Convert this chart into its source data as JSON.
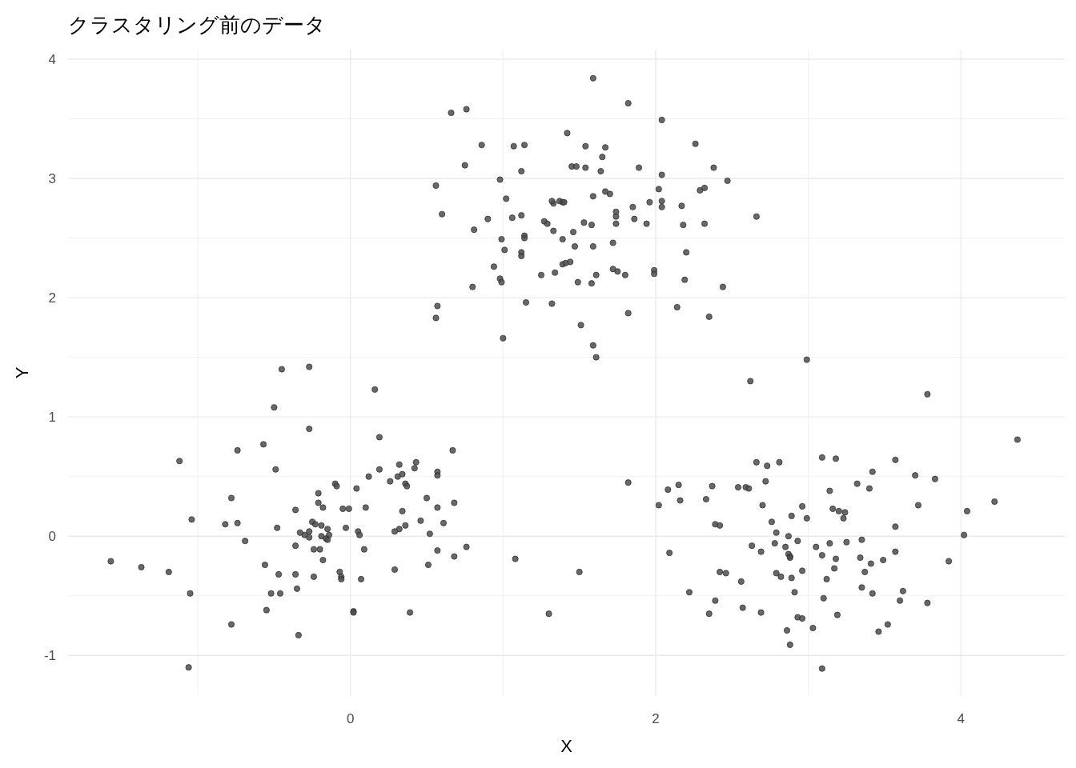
{
  "chart_data": {
    "type": "scatter",
    "title": "クラスタリング前のデータ",
    "xlabel": "X",
    "ylabel": "Y",
    "xlim": [
      -1.85,
      4.68
    ],
    "ylim": [
      -1.34,
      4.08
    ],
    "xticks": [
      {
        "value": -1,
        "label": null
      },
      0,
      {
        "value": 1,
        "label": null
      },
      2,
      {
        "value": 3,
        "label": null
      },
      4
    ],
    "yticks": [
      -1,
      {
        "value": -0.5,
        "label": null
      },
      0,
      {
        "value": 0.5,
        "label": null
      },
      1,
      {
        "value": 1.5,
        "label": null
      },
      2,
      {
        "value": 2.5,
        "label": null
      },
      3,
      {
        "value": 3.5,
        "label": null
      },
      4
    ],
    "grid": true,
    "marker": "circle",
    "series": [
      {
        "color": "#4d4d4d",
        "x": [
          1.59,
          1.82,
          0.76,
          0.66,
          2.04,
          1.42,
          2.26,
          0.86,
          1.07,
          1.14,
          1.54,
          1.67,
          1.65,
          1.45,
          1.48,
          1.54,
          0.75,
          1.89,
          2.38,
          1.64,
          1.12,
          2.04,
          0.98,
          2.47,
          0.56,
          2.32,
          2.29,
          2.02,
          1.67,
          1.7,
          1.59,
          1.02,
          1.37,
          1.39,
          1.33,
          1.32,
          1.4,
          1.96,
          2.04,
          2.17,
          1.85,
          2.04,
          1.74,
          0.6,
          1.12,
          1.74,
          1.06,
          0.9,
          2.66,
          1.86,
          1.27,
          1.29,
          1.53,
          1.58,
          1.74,
          1.94,
          2.18,
          2.32,
          0.81,
          1.33,
          1.46,
          1.14,
          1.14,
          0.99,
          1.39,
          1.72,
          1.47,
          1.59,
          1.01,
          2.2,
          1.12,
          1.12,
          1.39,
          1.41,
          1.44,
          0.94,
          1.72,
          1.75,
          1.99,
          1.99,
          1.34,
          1.25,
          1.8,
          1.61,
          0.98,
          0.99,
          2.19,
          1.49,
          1.58,
          0.8,
          2.44,
          1.15,
          1.32,
          0.57,
          2.14,
          1.82,
          2.35,
          0.56,
          1.51,
          1.0,
          1.59,
          1.61,
          2.99,
          2.62,
          3.78,
          4.37,
          1.82,
          3.09,
          3.18,
          2.66,
          2.81,
          2.73,
          3.57,
          3.42,
          3.7,
          3.83,
          2.72,
          3.32,
          3.4,
          2.37,
          2.15,
          2.08,
          2.54,
          2.59,
          2.61,
          3.14,
          2.16,
          2.33,
          4.22,
          2.02,
          2.7,
          2.96,
          3.72,
          3.16,
          3.2,
          3.24,
          4.04,
          2.89,
          2.99,
          3.23,
          2.76,
          2.39,
          2.42,
          3.57,
          2.79,
          2.87,
          4.02,
          3.35,
          2.93,
          2.78,
          3.14,
          3.25,
          2.63,
          2.85,
          3.05,
          2.09,
          2.69,
          3.57,
          2.87,
          2.88,
          3.09,
          3.18,
          3.34,
          3.49,
          3.92,
          2.88,
          3.41,
          3.17,
          2.96,
          2.42,
          2.46,
          2.79,
          3.37,
          2.82,
          2.89,
          2.56,
          3.12,
          3.35,
          2.91,
          3.62,
          2.22,
          3.42,
          3.1,
          2.39,
          3.6,
          3.78,
          2.57,
          2.69,
          2.35,
          3.19,
          2.93,
          2.96,
          3.52,
          3.03,
          2.86,
          3.46,
          2.88,
          3.09,
          1.5,
          1.3,
          1.08,
          -0.45,
          -0.27,
          0.16,
          -0.5,
          -0.27,
          0.19,
          -0.57,
          -0.74,
          0.67,
          -1.12,
          -0.49,
          0.19,
          0.43,
          0.32,
          0.42,
          0.57,
          0.57,
          0.12,
          0.26,
          0.31,
          0.34,
          0.36,
          0.37,
          -0.1,
          -0.09,
          0.04,
          -0.21,
          0.5,
          -0.78,
          -0.21,
          0.68,
          -0.18,
          0.1,
          0.57,
          -0.05,
          -0.01,
          -0.36,
          0.34,
          -1.04,
          0.61,
          -0.25,
          -0.82,
          -0.74,
          -0.23,
          0.46,
          0.36,
          0.32,
          -0.03,
          -0.19,
          -0.48,
          -0.15,
          -0.33,
          -0.3,
          -0.27,
          0.05,
          0.29,
          0.52,
          -0.14,
          0.06,
          -0.19,
          -0.27,
          -0.16,
          -0.15,
          -0.69,
          -0.36,
          -0.24,
          -0.2,
          0.09,
          0.57,
          0.76,
          0.68,
          -0.18,
          -1.57,
          0.51,
          -0.56,
          -1.37,
          0.29,
          -1.19,
          -0.07,
          -0.47,
          -0.36,
          -0.06,
          -0.24,
          -0.06,
          0.07,
          -0.35,
          -1.05,
          -0.52,
          -0.46,
          -0.55,
          0.02,
          0.02,
          0.39,
          -0.78,
          -0.34,
          -1.06
        ],
        "values": [
          3.84,
          3.63,
          3.58,
          3.55,
          3.49,
          3.38,
          3.29,
          3.28,
          3.27,
          3.28,
          3.27,
          3.26,
          3.18,
          3.1,
          3.1,
          3.09,
          3.11,
          3.09,
          3.09,
          3.06,
          3.06,
          3.03,
          2.99,
          2.98,
          2.94,
          2.92,
          2.9,
          2.91,
          2.89,
          2.87,
          2.85,
          2.83,
          2.81,
          2.8,
          2.79,
          2.81,
          2.8,
          2.8,
          2.81,
          2.77,
          2.76,
          2.76,
          2.72,
          2.7,
          2.69,
          2.68,
          2.67,
          2.66,
          2.68,
          2.66,
          2.64,
          2.62,
          2.63,
          2.61,
          2.62,
          2.62,
          2.61,
          2.62,
          2.57,
          2.56,
          2.55,
          2.52,
          2.5,
          2.49,
          2.49,
          2.46,
          2.43,
          2.43,
          2.4,
          2.38,
          2.38,
          2.35,
          2.28,
          2.29,
          2.3,
          2.26,
          2.24,
          2.22,
          2.23,
          2.2,
          2.21,
          2.19,
          2.19,
          2.19,
          2.16,
          2.13,
          2.15,
          2.13,
          2.12,
          2.09,
          2.09,
          1.96,
          1.95,
          1.93,
          1.92,
          1.87,
          1.84,
          1.83,
          1.77,
          1.66,
          1.6,
          1.5,
          1.48,
          1.3,
          1.19,
          0.81,
          0.45,
          0.66,
          0.65,
          0.62,
          0.62,
          0.59,
          0.64,
          0.54,
          0.51,
          0.48,
          0.46,
          0.44,
          0.4,
          0.42,
          0.43,
          0.39,
          0.41,
          0.41,
          0.4,
          0.38,
          0.3,
          0.31,
          0.29,
          0.26,
          0.26,
          0.25,
          0.26,
          0.23,
          0.21,
          0.2,
          0.21,
          0.17,
          0.15,
          0.15,
          0.12,
          0.1,
          0.09,
          0.08,
          0.03,
          0.0,
          0.01,
          -0.03,
          -0.04,
          -0.06,
          -0.06,
          -0.05,
          -0.08,
          -0.09,
          -0.09,
          -0.14,
          -0.13,
          -0.13,
          -0.15,
          -0.17,
          -0.16,
          -0.19,
          -0.18,
          -0.2,
          -0.21,
          -0.18,
          -0.23,
          -0.27,
          -0.29,
          -0.3,
          -0.31,
          -0.31,
          -0.3,
          -0.34,
          -0.35,
          -0.38,
          -0.36,
          -0.43,
          -0.47,
          -0.46,
          -0.47,
          -0.48,
          -0.52,
          -0.54,
          -0.54,
          -0.56,
          -0.6,
          -0.64,
          -0.65,
          -0.66,
          -0.68,
          -0.69,
          -0.74,
          -0.77,
          -0.79,
          -0.8,
          -0.91,
          -1.11,
          -0.3,
          -0.65,
          -0.19,
          1.4,
          1.42,
          1.23,
          1.08,
          0.9,
          0.83,
          0.77,
          0.72,
          0.72,
          0.63,
          0.56,
          0.56,
          0.62,
          0.6,
          0.57,
          0.54,
          0.51,
          0.5,
          0.46,
          0.5,
          0.52,
          0.44,
          0.42,
          0.44,
          0.42,
          0.4,
          0.36,
          0.32,
          0.32,
          0.28,
          0.28,
          0.24,
          0.24,
          0.24,
          0.23,
          0.23,
          0.22,
          0.21,
          0.14,
          0.11,
          0.12,
          0.1,
          0.11,
          0.1,
          0.13,
          0.09,
          0.06,
          0.07,
          0.09,
          0.07,
          0.06,
          0.03,
          0.01,
          0.04,
          0.04,
          0.04,
          0.02,
          0.01,
          0.01,
          0.0,
          -0.01,
          -0.02,
          -0.03,
          -0.04,
          -0.08,
          -0.11,
          -0.11,
          -0.11,
          -0.12,
          -0.09,
          -0.17,
          -0.2,
          -0.21,
          -0.24,
          -0.24,
          -0.26,
          -0.28,
          -0.3,
          -0.3,
          -0.32,
          -0.32,
          -0.34,
          -0.34,
          -0.36,
          -0.36,
          -0.44,
          -0.48,
          -0.48,
          -0.48,
          -0.62,
          -0.63,
          -0.64,
          -0.64,
          -0.74,
          -0.83,
          -1.1
        ]
      }
    ]
  }
}
